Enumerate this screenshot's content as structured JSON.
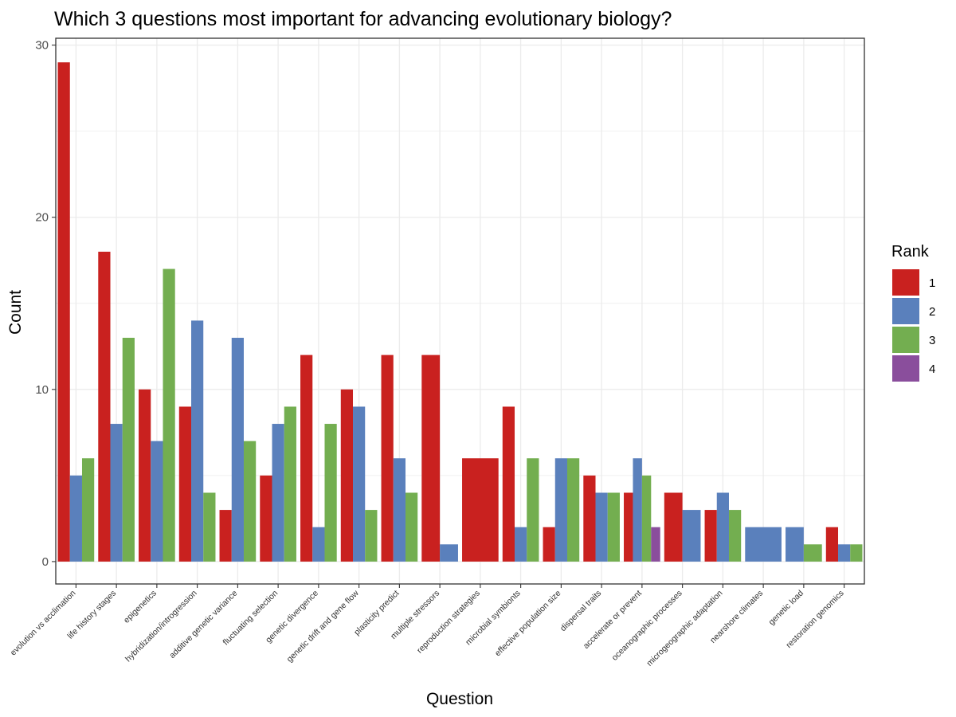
{
  "chart_data": {
    "type": "bar",
    "title": "Which 3 questions most important for advancing evolutionary biology?",
    "xlabel": "Question",
    "ylabel": "Count",
    "ylim": [
      -1.3,
      30.4
    ],
    "yticks": [
      0,
      10,
      20,
      30
    ],
    "grid": true,
    "legend": {
      "title": "Rank",
      "placement": "right"
    },
    "colors": {
      "1": "#C9211F",
      "2": "#5A80BC",
      "3": "#73AE50",
      "4": "#8A4E9C"
    },
    "groups": [
      {
        "label": "evolution vs acclimation",
        "bars": [
          {
            "rank": "1",
            "value": 29
          },
          {
            "rank": "2",
            "value": 5
          },
          {
            "rank": "3",
            "value": 6
          }
        ]
      },
      {
        "label": "life history stages",
        "bars": [
          {
            "rank": "1",
            "value": 18
          },
          {
            "rank": "2",
            "value": 8
          },
          {
            "rank": "3",
            "value": 13
          }
        ]
      },
      {
        "label": "epigenetics",
        "bars": [
          {
            "rank": "1",
            "value": 10
          },
          {
            "rank": "2",
            "value": 7
          },
          {
            "rank": "3",
            "value": 17
          }
        ]
      },
      {
        "label": "hybridization/introgression",
        "bars": [
          {
            "rank": "1",
            "value": 9
          },
          {
            "rank": "2",
            "value": 14
          },
          {
            "rank": "3",
            "value": 4
          }
        ]
      },
      {
        "label": "additive genetic variance",
        "bars": [
          {
            "rank": "1",
            "value": 3
          },
          {
            "rank": "2",
            "value": 13
          },
          {
            "rank": "3",
            "value": 7
          }
        ]
      },
      {
        "label": "fluctuating selection",
        "bars": [
          {
            "rank": "1",
            "value": 5
          },
          {
            "rank": "2",
            "value": 8
          },
          {
            "rank": "3",
            "value": 9
          }
        ]
      },
      {
        "label": "genetic divergence",
        "bars": [
          {
            "rank": "1",
            "value": 12
          },
          {
            "rank": "2",
            "value": 2
          },
          {
            "rank": "3",
            "value": 8
          }
        ]
      },
      {
        "label": "genetic drift and gene flow",
        "bars": [
          {
            "rank": "1",
            "value": 10
          },
          {
            "rank": "2",
            "value": 9
          },
          {
            "rank": "3",
            "value": 3
          }
        ]
      },
      {
        "label": "plasticity predict",
        "bars": [
          {
            "rank": "1",
            "value": 12
          },
          {
            "rank": "2",
            "value": 6
          },
          {
            "rank": "3",
            "value": 4
          }
        ]
      },
      {
        "label": "multiple stressors",
        "bars": [
          {
            "rank": "1",
            "value": 12
          },
          {
            "rank": "2",
            "value": 1
          }
        ]
      },
      {
        "label": "reproduction strategies",
        "bars": [
          {
            "rank": "1",
            "value": 6
          }
        ]
      },
      {
        "label": "microbial symbionts",
        "bars": [
          {
            "rank": "1",
            "value": 9
          },
          {
            "rank": "2",
            "value": 2
          },
          {
            "rank": "3",
            "value": 6
          }
        ]
      },
      {
        "label": "effective population size",
        "bars": [
          {
            "rank": "1",
            "value": 2
          },
          {
            "rank": "2",
            "value": 6
          },
          {
            "rank": "3",
            "value": 6
          }
        ]
      },
      {
        "label": "dispersal traits",
        "bars": [
          {
            "rank": "1",
            "value": 5
          },
          {
            "rank": "2",
            "value": 4
          },
          {
            "rank": "3",
            "value": 4
          }
        ]
      },
      {
        "label": "accelerate or prevent",
        "bars": [
          {
            "rank": "1",
            "value": 4
          },
          {
            "rank": "2",
            "value": 6
          },
          {
            "rank": "3",
            "value": 5
          },
          {
            "rank": "4",
            "value": 2
          }
        ]
      },
      {
        "label": "oceanographic processes",
        "bars": [
          {
            "rank": "1",
            "value": 4
          },
          {
            "rank": "2",
            "value": 3
          }
        ]
      },
      {
        "label": "microgeographic adaptation",
        "bars": [
          {
            "rank": "1",
            "value": 3
          },
          {
            "rank": "2",
            "value": 4
          },
          {
            "rank": "3",
            "value": 3
          }
        ]
      },
      {
        "label": "nearshore climates",
        "bars": [
          {
            "rank": "2",
            "value": 2
          }
        ]
      },
      {
        "label": "genetic load",
        "bars": [
          {
            "rank": "2",
            "value": 2
          },
          {
            "rank": "3",
            "value": 1
          }
        ]
      },
      {
        "label": "restoration genomics",
        "bars": [
          {
            "rank": "1",
            "value": 2
          },
          {
            "rank": "2",
            "value": 1
          },
          {
            "rank": "3",
            "value": 1
          }
        ]
      }
    ]
  }
}
